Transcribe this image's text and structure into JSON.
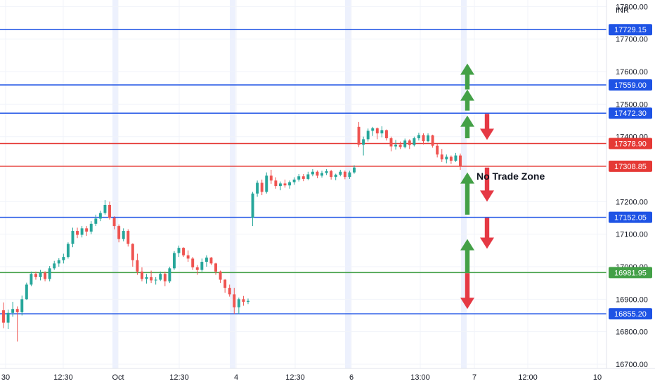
{
  "chart_data": {
    "type": "candlestick",
    "currency": "INR",
    "x_ticks": [
      "30",
      "12:30",
      "Oct",
      "12:30",
      "4",
      "12:30",
      "6",
      "13:00",
      "7",
      "12:00",
      "10"
    ],
    "y_ticks": [
      "17800.00",
      "17700.00",
      "17600.00",
      "17500.00",
      "17400.00",
      "17200.00",
      "17100.00",
      "17000.00",
      "16900.00",
      "16800.00",
      "16700.00"
    ],
    "ylim": [
      16700,
      17865
    ],
    "grid": true,
    "session_breaks": [
      "Oct",
      "4",
      "6",
      "7"
    ],
    "up_color": "#26a69a",
    "down_color": "#ef5350",
    "levels": [
      {
        "price": 17729.15,
        "label": "17729.15",
        "color": "#1e53e5"
      },
      {
        "price": 17559.0,
        "label": "17559.00",
        "color": "#1e53e5"
      },
      {
        "price": 17472.3,
        "label": "17472.30",
        "color": "#1e53e5"
      },
      {
        "price": 17378.9,
        "label": "17378.90",
        "color": "#e53935"
      },
      {
        "price": 17308.85,
        "label": "17308.85",
        "color": "#e53935"
      },
      {
        "price": 17152.05,
        "label": "17152.05",
        "color": "#1e53e5"
      },
      {
        "price": 16981.95,
        "label": "16981.95",
        "color": "#43a047"
      },
      {
        "price": 16855.2,
        "label": "16855.20",
        "color": "#1e53e5"
      }
    ],
    "annotations": [
      {
        "text": "No Trade Zone"
      }
    ],
    "arrows": [
      {
        "dir": "up",
        "price_top": 17625,
        "price_bottom": 17545
      },
      {
        "dir": "up",
        "price_top": 17545,
        "price_bottom": 17480
      },
      {
        "dir": "up",
        "price_top": 17465,
        "price_bottom": 17395
      },
      {
        "dir": "down",
        "price_top": 17470,
        "price_bottom": 17390
      },
      {
        "dir": "up",
        "price_top": 17290,
        "price_bottom": 17160
      },
      {
        "dir": "down",
        "price_top": 17305,
        "price_bottom": 17200
      },
      {
        "dir": "down",
        "price_top": 17150,
        "price_bottom": 17055
      },
      {
        "dir": "up",
        "price_top": 17085,
        "price_bottom": 16980
      },
      {
        "dir": "down",
        "price_top": 16980,
        "price_bottom": 16870
      }
    ],
    "candles": [
      [
        16866,
        16890,
        16811,
        16828
      ],
      [
        16828,
        16868,
        16808,
        16858
      ],
      [
        16858,
        16892,
        16846,
        16870
      ],
      [
        16870,
        16878,
        16770,
        16860
      ],
      [
        16860,
        16911,
        16850,
        16900
      ],
      [
        16900,
        16951,
        16898,
        16945
      ],
      [
        16945,
        16985,
        16940,
        16978
      ],
      [
        16978,
        16985,
        16960,
        16968
      ],
      [
        16968,
        16990,
        16958,
        16982
      ],
      [
        16982,
        16986,
        16955,
        16962
      ],
      [
        16962,
        17002,
        16955,
        16995
      ],
      [
        16995,
        17018,
        16990,
        17010
      ],
      [
        17010,
        17026,
        17000,
        17020
      ],
      [
        17020,
        17040,
        17010,
        17030
      ],
      [
        17030,
        17075,
        17025,
        17070
      ],
      [
        17070,
        17120,
        17060,
        17110
      ],
      [
        17110,
        17120,
        17088,
        17098
      ],
      [
        17098,
        17125,
        17090,
        17118
      ],
      [
        17118,
        17125,
        17095,
        17108
      ],
      [
        17108,
        17140,
        17100,
        17132
      ],
      [
        17132,
        17160,
        17125,
        17148
      ],
      [
        17148,
        17172,
        17140,
        17165
      ],
      [
        17165,
        17205,
        17160,
        17190
      ],
      [
        17190,
        17200,
        17145,
        17150
      ],
      [
        17150,
        17155,
        17115,
        17125
      ],
      [
        17125,
        17130,
        17075,
        17085
      ],
      [
        17085,
        17118,
        17078,
        17110
      ],
      [
        17110,
        17115,
        17062,
        17070
      ],
      [
        17070,
        17072,
        17000,
        17020
      ],
      [
        17020,
        17040,
        16975,
        16985
      ],
      [
        16985,
        16998,
        16955,
        16962
      ],
      [
        16962,
        16978,
        16948,
        16968
      ],
      [
        16968,
        16988,
        16950,
        16958
      ],
      [
        16958,
        16968,
        16945,
        16960
      ],
      [
        16960,
        16985,
        16956,
        16978
      ],
      [
        16978,
        16985,
        16940,
        16955
      ],
      [
        16955,
        17000,
        16950,
        16995
      ],
      [
        16995,
        17048,
        16990,
        17042
      ],
      [
        17042,
        17065,
        17030,
        17058
      ],
      [
        17058,
        17060,
        17030,
        17035
      ],
      [
        17035,
        17050,
        17015,
        17025
      ],
      [
        17025,
        17030,
        16990,
        16998
      ],
      [
        16998,
        17005,
        16975,
        16990
      ],
      [
        16990,
        17025,
        16985,
        17015
      ],
      [
        17015,
        17035,
        17000,
        17028
      ],
      [
        17028,
        17030,
        17005,
        17010
      ],
      [
        17010,
        17012,
        16975,
        16985
      ],
      [
        16985,
        16988,
        16950,
        16960
      ],
      [
        16960,
        16962,
        16920,
        16935
      ],
      [
        16935,
        16945,
        16908,
        16915
      ],
      [
        16915,
        16935,
        16855,
        16875
      ],
      [
        16875,
        16905,
        16855,
        16900
      ],
      [
        16900,
        16910,
        16880,
        16892
      ],
      [
        16892,
        16902,
        16885,
        16895
      ],
      [
        17150,
        17230,
        17125,
        17225
      ],
      [
        17225,
        17265,
        17215,
        17258
      ],
      [
        17258,
        17268,
        17220,
        17230
      ],
      [
        17230,
        17290,
        17225,
        17280
      ],
      [
        17280,
        17298,
        17255,
        17265
      ],
      [
        17265,
        17275,
        17240,
        17248
      ],
      [
        17248,
        17262,
        17235,
        17256
      ],
      [
        17256,
        17268,
        17243,
        17250
      ],
      [
        17250,
        17265,
        17240,
        17260
      ],
      [
        17260,
        17275,
        17252,
        17268
      ],
      [
        17268,
        17285,
        17262,
        17278
      ],
      [
        17278,
        17285,
        17263,
        17270
      ],
      [
        17270,
        17292,
        17266,
        17284
      ],
      [
        17284,
        17300,
        17278,
        17292
      ],
      [
        17292,
        17296,
        17272,
        17280
      ],
      [
        17280,
        17295,
        17274,
        17288
      ],
      [
        17288,
        17300,
        17282,
        17294
      ],
      [
        17294,
        17298,
        17268,
        17276
      ],
      [
        17276,
        17286,
        17266,
        17283
      ],
      [
        17283,
        17298,
        17278,
        17292
      ],
      [
        17292,
        17296,
        17269,
        17276
      ],
      [
        17276,
        17295,
        17270,
        17290
      ],
      [
        17290,
        17312,
        17286,
        17305
      ],
      [
        17430,
        17445,
        17368,
        17375
      ],
      [
        17375,
        17400,
        17342,
        17392
      ],
      [
        17392,
        17425,
        17385,
        17418
      ],
      [
        17418,
        17430,
        17402,
        17426
      ],
      [
        17426,
        17428,
        17392,
        17410
      ],
      [
        17410,
        17432,
        17398,
        17420
      ],
      [
        17420,
        17422,
        17388,
        17395
      ],
      [
        17395,
        17400,
        17355,
        17370
      ],
      [
        17370,
        17390,
        17360,
        17375
      ],
      [
        17375,
        17385,
        17362,
        17368
      ],
      [
        17368,
        17394,
        17364,
        17388
      ],
      [
        17388,
        17392,
        17362,
        17374
      ],
      [
        17374,
        17400,
        17370,
        17395
      ],
      [
        17395,
        17412,
        17388,
        17405
      ],
      [
        17405,
        17410,
        17376,
        17386
      ],
      [
        17386,
        17410,
        17383,
        17404
      ],
      [
        17404,
        17406,
        17366,
        17372
      ],
      [
        17372,
        17378,
        17336,
        17345
      ],
      [
        17345,
        17362,
        17322,
        17330
      ],
      [
        17330,
        17345,
        17318,
        17338
      ],
      [
        17338,
        17342,
        17316,
        17326
      ],
      [
        17326,
        17350,
        17322,
        17342
      ],
      [
        17342,
        17348,
        17298,
        17310
      ]
    ]
  }
}
